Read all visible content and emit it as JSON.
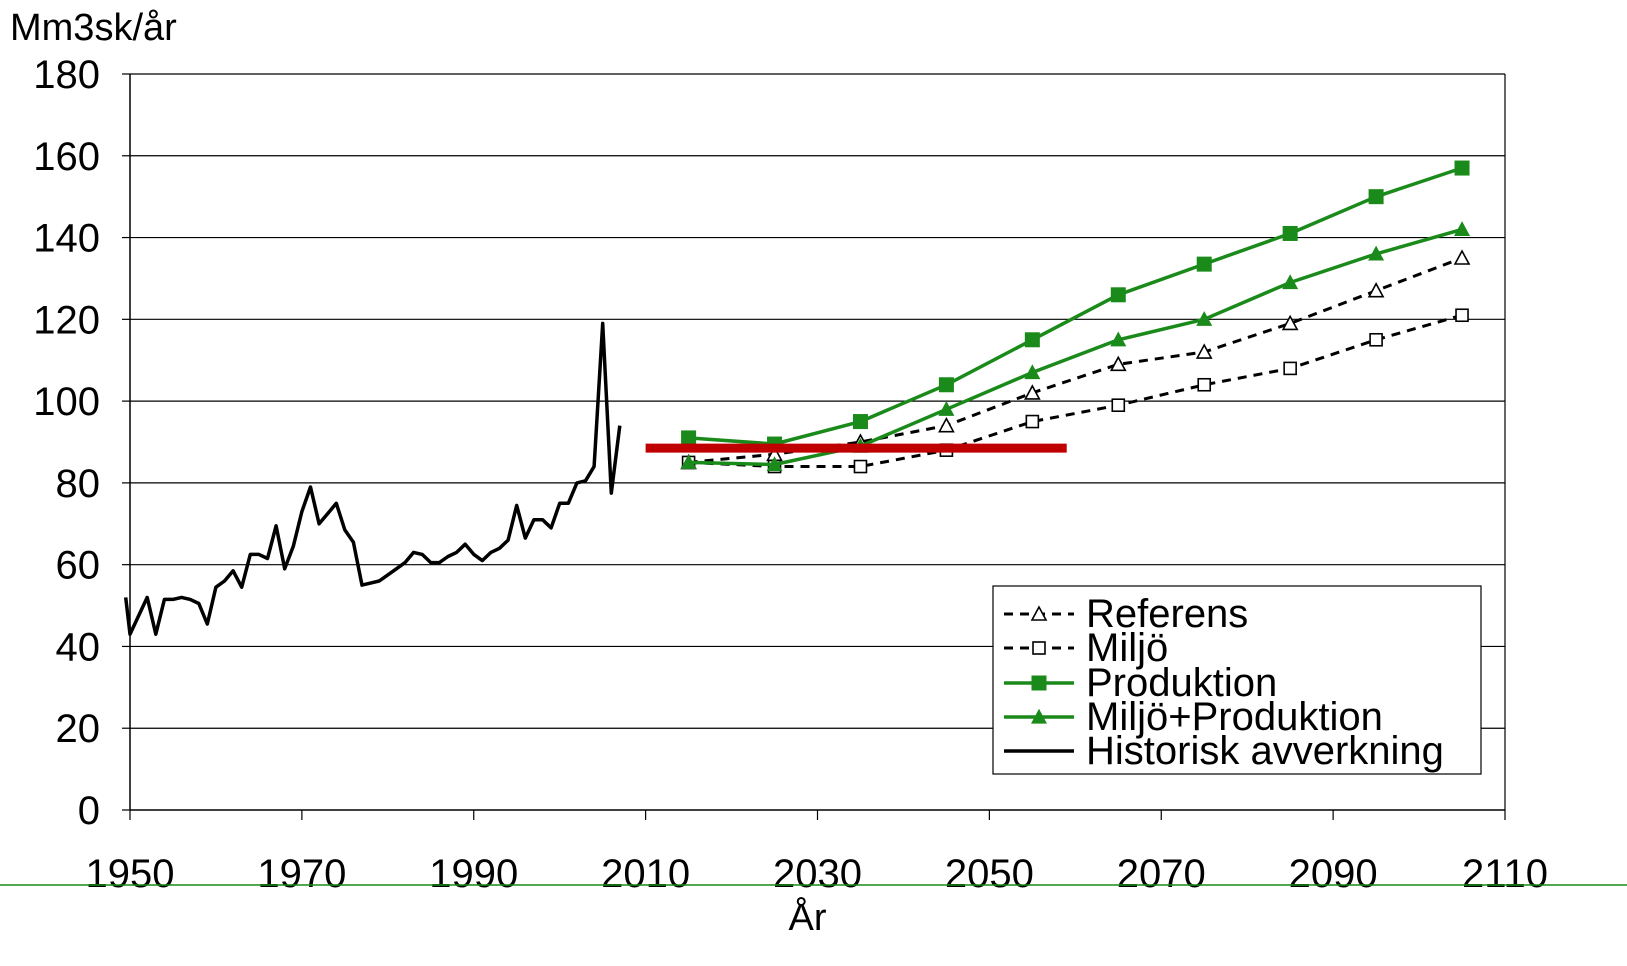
{
  "chart_data": {
    "type": "line",
    "ylabel": "Mm3sk/år",
    "xlabel": "År",
    "xlim": [
      1950,
      2110
    ],
    "ylim": [
      0,
      180
    ],
    "x_ticks": [
      "1950",
      "1970",
      "1990",
      "2010",
      "2030",
      "2050",
      "2070",
      "2090",
      "2110"
    ],
    "y_ticks": [
      "0",
      "20",
      "40",
      "60",
      "80",
      "100",
      "120",
      "140",
      "160",
      "180"
    ],
    "grid": "horizontal",
    "legend_position": "bottom-right",
    "colors": {
      "green": "#1a8a1a",
      "red": "#c00000",
      "black": "#000000"
    },
    "series": [
      {
        "name": "Referens",
        "style": "dashed",
        "color": "#000000",
        "marker": "open-triangle",
        "x": [
          2015,
          2025,
          2035,
          2045,
          2055,
          2065,
          2075,
          2085,
          2095,
          2105
        ],
        "y": [
          85,
          87,
          90,
          94,
          102,
          109,
          112,
          119,
          127,
          135
        ]
      },
      {
        "name": "Miljö",
        "style": "dashed",
        "color": "#000000",
        "marker": "open-square",
        "x": [
          2015,
          2025,
          2035,
          2045,
          2055,
          2065,
          2075,
          2085,
          2095,
          2105
        ],
        "y": [
          85,
          84,
          84,
          88,
          95,
          99,
          104,
          108,
          115,
          121
        ]
      },
      {
        "name": "Produktion",
        "style": "solid",
        "color": "#1a8a1a",
        "marker": "filled-square",
        "x": [
          2015,
          2025,
          2035,
          2045,
          2055,
          2065,
          2075,
          2085,
          2095,
          2105
        ],
        "y": [
          91,
          89.5,
          95,
          104,
          115,
          126,
          133.5,
          141,
          150,
          157
        ]
      },
      {
        "name": "Miljö+Produktion",
        "style": "solid",
        "color": "#1a8a1a",
        "marker": "filled-triangle",
        "x": [
          2015,
          2025,
          2035,
          2045,
          2055,
          2065,
          2075,
          2085,
          2095,
          2105
        ],
        "y": [
          85,
          84.5,
          89,
          98,
          107,
          115,
          120,
          129,
          136,
          142
        ]
      },
      {
        "name": "Historisk avverkning",
        "style": "solid",
        "color": "#000000",
        "marker": "none",
        "x": [
          1949.5,
          1950,
          1952,
          1953,
          1954,
          1955,
          1956,
          1957,
          1958,
          1959,
          1960,
          1961,
          1962,
          1963,
          1964,
          1965,
          1966,
          1967,
          1968,
          1969,
          1970,
          1971,
          1972,
          1973,
          1974,
          1975,
          1976,
          1977,
          1978,
          1979,
          1980,
          1981,
          1982,
          1983,
          1984,
          1985,
          1986,
          1987,
          1988,
          1989,
          1990,
          1991,
          1992,
          1993,
          1994,
          1995,
          1996,
          1997,
          1998,
          1999,
          2000,
          2001,
          2002,
          2003,
          2004,
          2005,
          2006,
          2007
        ],
        "y": [
          52,
          43,
          52,
          43,
          51.5,
          51.5,
          52,
          51.5,
          50.5,
          45.5,
          54.5,
          56,
          58.5,
          54.5,
          62.5,
          62.5,
          61.5,
          69.5,
          59,
          64.5,
          73,
          79,
          70,
          72.5,
          75,
          68.5,
          65.5,
          55,
          55.5,
          56,
          57.5,
          59,
          60.5,
          63,
          62.5,
          60.5,
          60.5,
          62,
          63,
          65,
          62.5,
          61,
          63,
          64,
          66,
          74.5,
          66.5,
          71,
          71,
          69,
          75,
          75,
          80,
          80.5,
          84,
          119,
          77.5,
          94
        ]
      }
    ],
    "reference_line": {
      "x": [
        2010,
        2059
      ],
      "y": 88.5,
      "color": "#c00000"
    }
  }
}
